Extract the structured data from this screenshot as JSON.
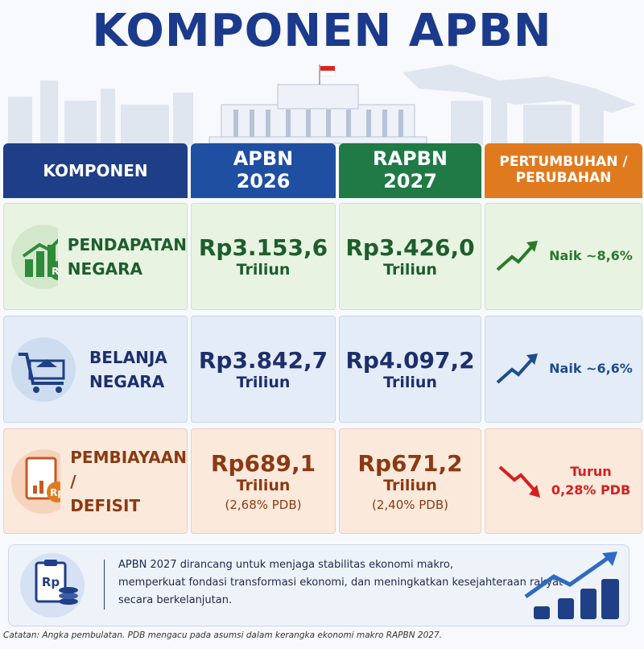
{
  "title": "KOMPONEN APBN",
  "table": {
    "header": [
      [
        "KOMPONEN"
      ],
      [
        "APBN",
        "2026"
      ],
      [
        "RAPBN",
        "2027"
      ],
      [
        "PERTUMBUHAN /",
        "PERUBAHAN"
      ]
    ],
    "rows": [
      {
        "component": [
          "PENDAPATAN",
          "NEGARA"
        ],
        "apbn_2026": {
          "amount": "Rp3.153,6",
          "unit": "Triliun"
        },
        "rapbn_2027": {
          "amount": "Rp3.426,0",
          "unit": "Triliun"
        },
        "change": [
          "Naik ~8,6%"
        ]
      },
      {
        "component": [
          "BELANJA",
          "NEGARA"
        ],
        "apbn_2026": {
          "amount": "Rp3.842,7",
          "unit": "Triliun"
        },
        "rapbn_2027": {
          "amount": "Rp4.097,2",
          "unit": "Triliun"
        },
        "change": [
          "Naik ~6,6%"
        ]
      },
      {
        "component": [
          "PEMBIAYAAN /",
          "DEFISIT"
        ],
        "apbn_2026": {
          "amount": "Rp689,1",
          "unit": "Triliun",
          "note": "(2,68% PDB)"
        },
        "rapbn_2027": {
          "amount": "Rp671,2",
          "unit": "Triliun",
          "note": "(2,40% PDB)"
        },
        "change": [
          "Turun",
          "0,28% PDB"
        ]
      }
    ]
  },
  "summary": {
    "icon_label": "Rp",
    "lines": [
      "APBN 2027 dirancang untuk menjaga stabilitas ekonomi makro,",
      "memperkuat fondasi transformasi ekonomi, dan meningkatkan kesejahteraan rakyat",
      "secara berkelanjutan."
    ]
  },
  "footnote": "Catatan: Angka pembulatan. PDB mengacu pada asumsi dalam kerangka ekonomi makro RAPBN 2027."
}
